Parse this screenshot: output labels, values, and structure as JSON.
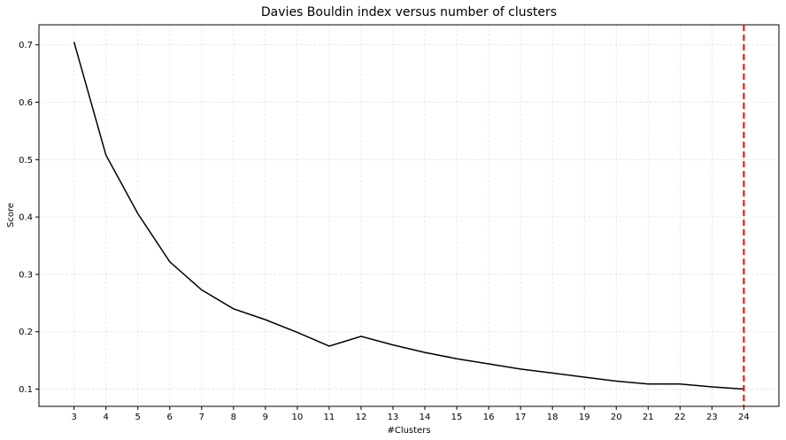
{
  "chart_data": {
    "type": "line",
    "title": "Davies Bouldin index versus number of clusters",
    "xlabel": "#Clusters",
    "ylabel": "Score",
    "x": [
      3,
      4,
      5,
      6,
      7,
      8,
      9,
      10,
      11,
      12,
      13,
      14,
      15,
      16,
      17,
      18,
      19,
      20,
      21,
      22,
      23,
      24
    ],
    "series": [
      {
        "values": [
          0.705,
          0.508,
          0.406,
          0.322,
          0.273,
          0.24,
          0.221,
          0.199,
          0.175,
          0.192,
          0.177,
          0.164,
          0.153,
          0.144,
          0.135,
          0.128,
          0.121,
          0.114,
          0.109,
          0.109,
          0.104,
          0.1
        ],
        "color": "#000000"
      }
    ],
    "vline": {
      "x": 24,
      "color": "#ff0000",
      "style": "dashed"
    },
    "xlim": [
      1.9,
      25.1
    ],
    "ylim": [
      0.07,
      0.735
    ],
    "xticks": [
      3,
      4,
      5,
      6,
      7,
      8,
      9,
      10,
      11,
      12,
      13,
      14,
      15,
      16,
      17,
      18,
      19,
      20,
      21,
      22,
      23,
      24
    ],
    "yticks": [
      0.1,
      0.2,
      0.3,
      0.4,
      0.5,
      0.6,
      0.7
    ],
    "ytick_labels": [
      "0.1",
      "0.2",
      "0.3",
      "0.4",
      "0.5",
      "0.6",
      "0.7"
    ],
    "grid": true
  }
}
